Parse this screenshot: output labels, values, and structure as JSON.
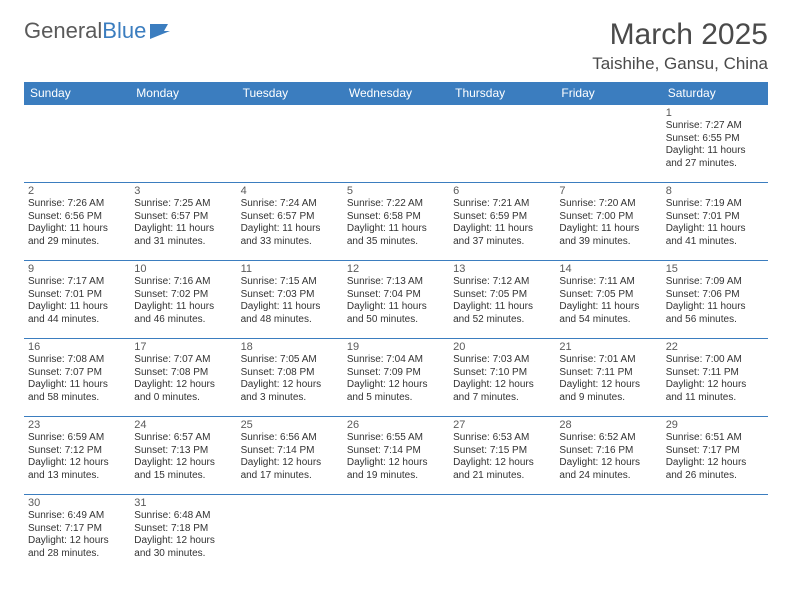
{
  "logo": {
    "text1": "General",
    "text2": "Blue"
  },
  "title": "March 2025",
  "location": "Taishihe, Gansu, China",
  "colors": {
    "header_bg": "#3b7dbf",
    "border": "#3b7dbf",
    "text": "#333333"
  },
  "day_headers": [
    "Sunday",
    "Monday",
    "Tuesday",
    "Wednesday",
    "Thursday",
    "Friday",
    "Saturday"
  ],
  "weeks": [
    [
      null,
      null,
      null,
      null,
      null,
      null,
      {
        "n": "1",
        "sr": "Sunrise: 7:27 AM",
        "ss": "Sunset: 6:55 PM",
        "dl": "Daylight: 11 hours and 27 minutes."
      }
    ],
    [
      {
        "n": "2",
        "sr": "Sunrise: 7:26 AM",
        "ss": "Sunset: 6:56 PM",
        "dl": "Daylight: 11 hours and 29 minutes."
      },
      {
        "n": "3",
        "sr": "Sunrise: 7:25 AM",
        "ss": "Sunset: 6:57 PM",
        "dl": "Daylight: 11 hours and 31 minutes."
      },
      {
        "n": "4",
        "sr": "Sunrise: 7:24 AM",
        "ss": "Sunset: 6:57 PM",
        "dl": "Daylight: 11 hours and 33 minutes."
      },
      {
        "n": "5",
        "sr": "Sunrise: 7:22 AM",
        "ss": "Sunset: 6:58 PM",
        "dl": "Daylight: 11 hours and 35 minutes."
      },
      {
        "n": "6",
        "sr": "Sunrise: 7:21 AM",
        "ss": "Sunset: 6:59 PM",
        "dl": "Daylight: 11 hours and 37 minutes."
      },
      {
        "n": "7",
        "sr": "Sunrise: 7:20 AM",
        "ss": "Sunset: 7:00 PM",
        "dl": "Daylight: 11 hours and 39 minutes."
      },
      {
        "n": "8",
        "sr": "Sunrise: 7:19 AM",
        "ss": "Sunset: 7:01 PM",
        "dl": "Daylight: 11 hours and 41 minutes."
      }
    ],
    [
      {
        "n": "9",
        "sr": "Sunrise: 7:17 AM",
        "ss": "Sunset: 7:01 PM",
        "dl": "Daylight: 11 hours and 44 minutes."
      },
      {
        "n": "10",
        "sr": "Sunrise: 7:16 AM",
        "ss": "Sunset: 7:02 PM",
        "dl": "Daylight: 11 hours and 46 minutes."
      },
      {
        "n": "11",
        "sr": "Sunrise: 7:15 AM",
        "ss": "Sunset: 7:03 PM",
        "dl": "Daylight: 11 hours and 48 minutes."
      },
      {
        "n": "12",
        "sr": "Sunrise: 7:13 AM",
        "ss": "Sunset: 7:04 PM",
        "dl": "Daylight: 11 hours and 50 minutes."
      },
      {
        "n": "13",
        "sr": "Sunrise: 7:12 AM",
        "ss": "Sunset: 7:05 PM",
        "dl": "Daylight: 11 hours and 52 minutes."
      },
      {
        "n": "14",
        "sr": "Sunrise: 7:11 AM",
        "ss": "Sunset: 7:05 PM",
        "dl": "Daylight: 11 hours and 54 minutes."
      },
      {
        "n": "15",
        "sr": "Sunrise: 7:09 AM",
        "ss": "Sunset: 7:06 PM",
        "dl": "Daylight: 11 hours and 56 minutes."
      }
    ],
    [
      {
        "n": "16",
        "sr": "Sunrise: 7:08 AM",
        "ss": "Sunset: 7:07 PM",
        "dl": "Daylight: 11 hours and 58 minutes."
      },
      {
        "n": "17",
        "sr": "Sunrise: 7:07 AM",
        "ss": "Sunset: 7:08 PM",
        "dl": "Daylight: 12 hours and 0 minutes."
      },
      {
        "n": "18",
        "sr": "Sunrise: 7:05 AM",
        "ss": "Sunset: 7:08 PM",
        "dl": "Daylight: 12 hours and 3 minutes."
      },
      {
        "n": "19",
        "sr": "Sunrise: 7:04 AM",
        "ss": "Sunset: 7:09 PM",
        "dl": "Daylight: 12 hours and 5 minutes."
      },
      {
        "n": "20",
        "sr": "Sunrise: 7:03 AM",
        "ss": "Sunset: 7:10 PM",
        "dl": "Daylight: 12 hours and 7 minutes."
      },
      {
        "n": "21",
        "sr": "Sunrise: 7:01 AM",
        "ss": "Sunset: 7:11 PM",
        "dl": "Daylight: 12 hours and 9 minutes."
      },
      {
        "n": "22",
        "sr": "Sunrise: 7:00 AM",
        "ss": "Sunset: 7:11 PM",
        "dl": "Daylight: 12 hours and 11 minutes."
      }
    ],
    [
      {
        "n": "23",
        "sr": "Sunrise: 6:59 AM",
        "ss": "Sunset: 7:12 PM",
        "dl": "Daylight: 12 hours and 13 minutes."
      },
      {
        "n": "24",
        "sr": "Sunrise: 6:57 AM",
        "ss": "Sunset: 7:13 PM",
        "dl": "Daylight: 12 hours and 15 minutes."
      },
      {
        "n": "25",
        "sr": "Sunrise: 6:56 AM",
        "ss": "Sunset: 7:14 PM",
        "dl": "Daylight: 12 hours and 17 minutes."
      },
      {
        "n": "26",
        "sr": "Sunrise: 6:55 AM",
        "ss": "Sunset: 7:14 PM",
        "dl": "Daylight: 12 hours and 19 minutes."
      },
      {
        "n": "27",
        "sr": "Sunrise: 6:53 AM",
        "ss": "Sunset: 7:15 PM",
        "dl": "Daylight: 12 hours and 21 minutes."
      },
      {
        "n": "28",
        "sr": "Sunrise: 6:52 AM",
        "ss": "Sunset: 7:16 PM",
        "dl": "Daylight: 12 hours and 24 minutes."
      },
      {
        "n": "29",
        "sr": "Sunrise: 6:51 AM",
        "ss": "Sunset: 7:17 PM",
        "dl": "Daylight: 12 hours and 26 minutes."
      }
    ],
    [
      {
        "n": "30",
        "sr": "Sunrise: 6:49 AM",
        "ss": "Sunset: 7:17 PM",
        "dl": "Daylight: 12 hours and 28 minutes."
      },
      {
        "n": "31",
        "sr": "Sunrise: 6:48 AM",
        "ss": "Sunset: 7:18 PM",
        "dl": "Daylight: 12 hours and 30 minutes."
      },
      null,
      null,
      null,
      null,
      null
    ]
  ]
}
